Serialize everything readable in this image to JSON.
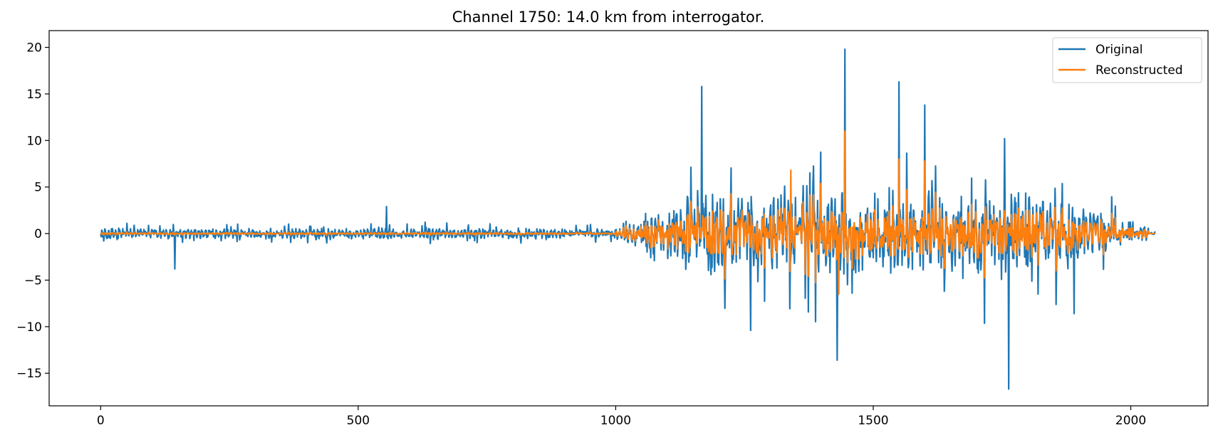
{
  "chart_data": {
    "type": "line",
    "title": "Channel 1750: 14.0 km from interrogator.",
    "xlabel": "",
    "ylabel": "",
    "xlim": [
      -100,
      2150
    ],
    "ylim": [
      -18.5,
      21.8
    ],
    "xticks": [
      0,
      500,
      1000,
      1500,
      2000
    ],
    "xtick_labels": [
      "0",
      "500",
      "1000",
      "1500",
      "2000"
    ],
    "yticks": [
      -15,
      -10,
      -5,
      0,
      5,
      10,
      15,
      20
    ],
    "ytick_labels": [
      "−15",
      "−10",
      "−5",
      "0",
      "5",
      "10",
      "15",
      "20"
    ],
    "grid": false,
    "legend_position": "top-right",
    "series": [
      {
        "name": "Original",
        "color": "#1f77b4",
        "num_samples": 2048,
        "peaks": [
          {
            "x": 144,
            "y": -3.8
          },
          {
            "x": 555,
            "y": 2.9
          },
          {
            "x": 1167,
            "y": 15.8
          },
          {
            "x": 1262,
            "y": -10.4
          },
          {
            "x": 1430,
            "y": -13.6
          },
          {
            "x": 1445,
            "y": 19.8
          },
          {
            "x": 1550,
            "y": 16.3
          },
          {
            "x": 1600,
            "y": 13.8
          },
          {
            "x": 1755,
            "y": 10.2
          },
          {
            "x": 1763,
            "y": -16.7
          },
          {
            "x": 1890,
            "y": -8.6
          }
        ]
      },
      {
        "name": "Reconstructed",
        "color": "#ff7f0e",
        "num_samples": 2048,
        "peaks": [
          {
            "x": 1433,
            "y": -6.5
          },
          {
            "x": 1445,
            "y": 11.0
          },
          {
            "x": 1550,
            "y": 8.0
          },
          {
            "x": 1600,
            "y": 7.8
          },
          {
            "x": 1340,
            "y": 6.8
          }
        ]
      }
    ]
  }
}
